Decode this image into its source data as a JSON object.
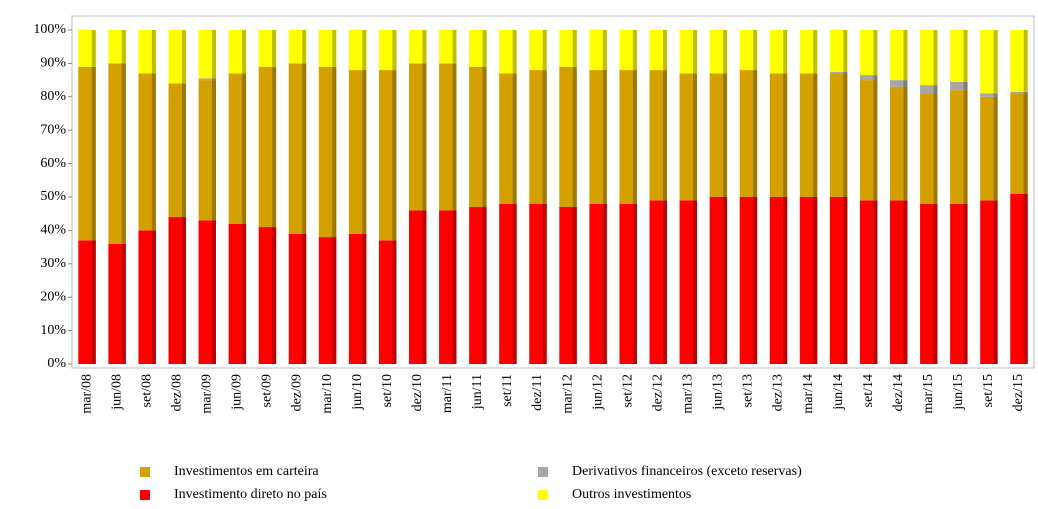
{
  "chart_data": {
    "type": "stacked_bar",
    "categories": [
      "mar/08",
      "jun/08",
      "set/08",
      "dez/08",
      "mar/09",
      "jun/09",
      "set/09",
      "dez/09",
      "mar/10",
      "jun/10",
      "set/10",
      "dez/10",
      "mar/11",
      "jun/11",
      "set/11",
      "dez/11",
      "mar/12",
      "jun/12",
      "set/12",
      "dez/12",
      "mar/13",
      "jun/13",
      "set/13",
      "dez/13",
      "mar/14",
      "jun/14",
      "set/14",
      "dez/14",
      "mar/15",
      "jun/15",
      "set/15",
      "dez/15"
    ],
    "series": [
      {
        "name": "Investimento direto no país",
        "color": "#ff0000",
        "values": [
          37,
          36,
          40,
          44,
          43,
          42,
          41,
          39,
          38,
          39,
          37,
          46,
          46,
          47,
          48,
          48,
          47,
          48,
          48,
          49,
          49,
          50,
          50,
          50,
          50,
          50,
          49,
          49,
          48,
          48,
          49,
          51
        ]
      },
      {
        "name": "Investimentos em carteira",
        "color": "#d4a000",
        "values": [
          52,
          54,
          47,
          40,
          42,
          45,
          48,
          51,
          51,
          49,
          51,
          44,
          44,
          42,
          39,
          40,
          42,
          40,
          40,
          39,
          38,
          37,
          38,
          37,
          37,
          37,
          36,
          34,
          33,
          34,
          31,
          30
        ]
      },
      {
        "name": "Derivativos financeiros (exceto reservas)",
        "color": "#a6a6a6",
        "values": [
          0,
          0,
          0,
          0,
          0.5,
          0,
          0,
          0,
          0,
          0,
          0,
          0,
          0,
          0,
          0,
          0,
          0,
          0,
          0,
          0,
          0,
          0,
          0,
          0,
          0,
          0.5,
          1.5,
          2,
          2.5,
          2.5,
          1,
          0.5
        ]
      },
      {
        "name": "Outros investimentos",
        "color": "#ffff00",
        "values": [
          11,
          10,
          13,
          16,
          14.5,
          13,
          11,
          10,
          11,
          12,
          12,
          10,
          10,
          11,
          13,
          12,
          11,
          12,
          12,
          12,
          13,
          13,
          12,
          13,
          13,
          12.5,
          13.5,
          15,
          16.5,
          15.5,
          19,
          18.5
        ]
      }
    ],
    "ylim": [
      0,
      100
    ],
    "yticks": [
      {
        "value": 0,
        "label": "0%"
      },
      {
        "value": 10,
        "label": "10%"
      },
      {
        "value": 20,
        "label": "20%"
      },
      {
        "value": 30,
        "label": "30%"
      },
      {
        "value": 40,
        "label": "40%"
      },
      {
        "value": 50,
        "label": "50%"
      },
      {
        "value": 60,
        "label": "60%"
      },
      {
        "value": 70,
        "label": "70%"
      },
      {
        "value": 80,
        "label": "80%"
      },
      {
        "value": 90,
        "label": "90%"
      },
      {
        "value": 100,
        "label": "100%"
      }
    ]
  }
}
